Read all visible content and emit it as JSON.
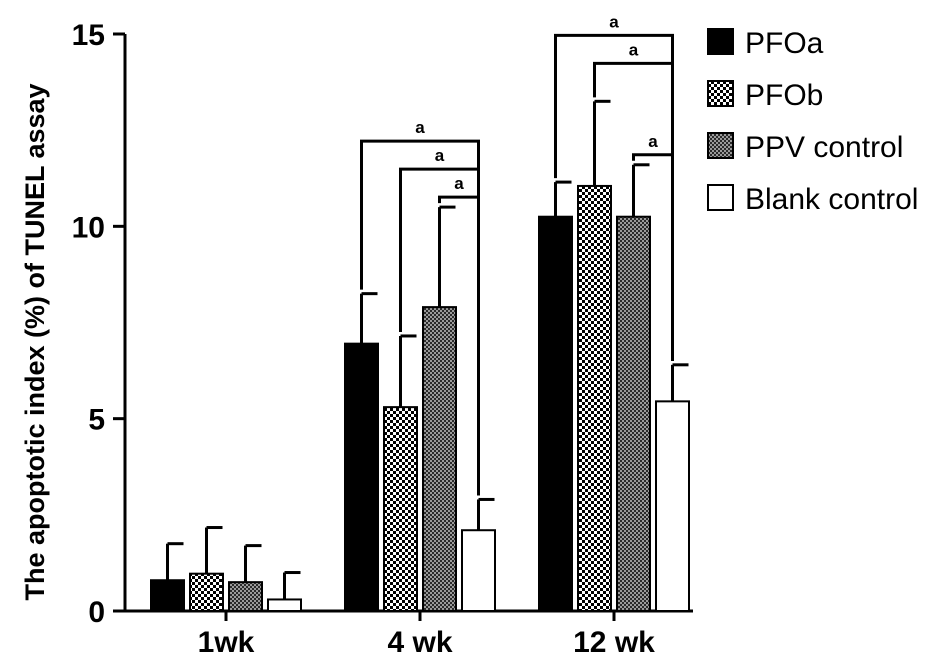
{
  "chart_data": {
    "type": "bar",
    "ylabel": "The apoptotic index (%) of TUNEL assay",
    "xlabel": "",
    "ylim": [
      0,
      15
    ],
    "yticks": [
      0,
      5,
      10,
      15
    ],
    "categories": [
      "1wk",
      "4 wk",
      "12 wk"
    ],
    "series": [
      {
        "name": "PFOa",
        "pattern": "solid-black",
        "values": [
          0.8,
          6.95,
          10.25
        ],
        "errors": [
          0.95,
          1.3,
          0.9
        ]
      },
      {
        "name": "PFOb",
        "pattern": "checker-dense",
        "values": [
          0.97,
          5.3,
          11.05
        ],
        "errors": [
          1.2,
          1.85,
          2.2
        ]
      },
      {
        "name": "PPV control",
        "pattern": "checker-fine",
        "values": [
          0.75,
          7.9,
          10.25
        ],
        "errors": [
          0.95,
          2.6,
          1.35
        ]
      },
      {
        "name": "Blank control",
        "pattern": "white",
        "values": [
          0.3,
          2.1,
          5.45
        ],
        "errors": [
          0.7,
          0.8,
          0.95
        ]
      }
    ],
    "significance": [
      {
        "group": 1,
        "from_series": 0,
        "to_series": 3,
        "label": "a"
      },
      {
        "group": 1,
        "from_series": 1,
        "to_series": 3,
        "label": "a"
      },
      {
        "group": 1,
        "from_series": 2,
        "to_series": 3,
        "label": "a"
      },
      {
        "group": 2,
        "from_series": 0,
        "to_series": 3,
        "label": "a"
      },
      {
        "group": 2,
        "from_series": 1,
        "to_series": 3,
        "label": "a"
      },
      {
        "group": 2,
        "from_series": 2,
        "to_series": 3,
        "label": "a"
      }
    ],
    "legend_position": "top-right",
    "grid": false,
    "colors": {
      "bar_fill": "#000000",
      "outline": "#000000",
      "background": "#ffffff"
    }
  }
}
